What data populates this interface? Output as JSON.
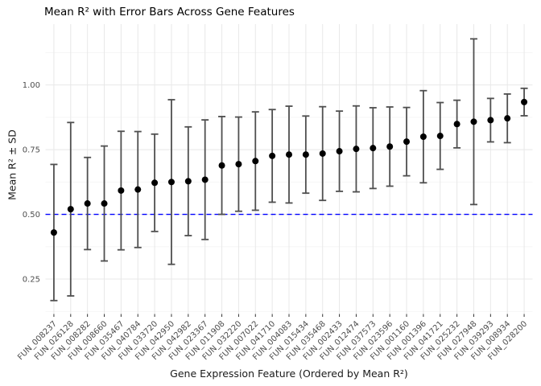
{
  "chart_data": {
    "type": "scatter",
    "title": "Mean R² with Error Bars Across Gene Features",
    "xlabel": "Gene Expression Feature (Ordered by Mean R²)",
    "ylabel": "Mean R² ± SD",
    "legend": "none",
    "grid": "horizontal major+minor, vertical major per category",
    "x_categories": [
      "FUN_008237",
      "FUN_026128",
      "FUN_008282",
      "FUN_008660",
      "FUN_035467",
      "FUN_040784",
      "FUN_033720",
      "FUN_042950",
      "FUN_042982",
      "FUN_023367",
      "FUN_011908",
      "FUN_032220",
      "FUN_007022",
      "FUN_041710",
      "FUN_004083",
      "FUN_015434",
      "FUN_035468",
      "FUN_002433",
      "FUN_012474",
      "FUN_037573",
      "FUN_023596",
      "FUN_001160",
      "FUN_001396",
      "FUN_041721",
      "FUN_025232",
      "FUN_027948",
      "FUN_039293",
      "FUN_008934",
      "FUN_028200"
    ],
    "series": [
      {
        "name": "Mean R² ± SD",
        "means": [
          0.43,
          0.52,
          0.542,
          0.542,
          0.592,
          0.596,
          0.622,
          0.625,
          0.628,
          0.634,
          0.689,
          0.694,
          0.706,
          0.726,
          0.731,
          0.731,
          0.735,
          0.744,
          0.753,
          0.756,
          0.762,
          0.781,
          0.8,
          0.803,
          0.849,
          0.858,
          0.864,
          0.871,
          0.934
        ],
        "sds": [
          0.263,
          0.335,
          0.178,
          0.222,
          0.229,
          0.224,
          0.188,
          0.318,
          0.21,
          0.231,
          0.189,
          0.182,
          0.19,
          0.179,
          0.187,
          0.149,
          0.181,
          0.155,
          0.166,
          0.156,
          0.153,
          0.132,
          0.178,
          0.129,
          0.092,
          0.32,
          0.084,
          0.094,
          0.053
        ]
      }
    ],
    "yticks": [
      "0.25",
      "0.50",
      "0.75",
      "1.00"
    ],
    "ytick_values": [
      0.25,
      0.5,
      0.75,
      1.0
    ],
    "yminor_values": [
      0.125,
      0.375,
      0.625,
      0.875,
      1.125
    ],
    "ylim": [
      0.115,
      1.235
    ],
    "reference_line": {
      "y": 0.5,
      "style": "dashed",
      "color": "#0000FF"
    },
    "colors": {
      "point": "#000000",
      "error_bar": "#4F4F4F",
      "grid_major": "#E8E8E8",
      "grid_minor": "#F3F3F3",
      "tick_mark": "#333333",
      "tick_label": "#4D4D4D",
      "background": "#FFFFFF"
    }
  }
}
